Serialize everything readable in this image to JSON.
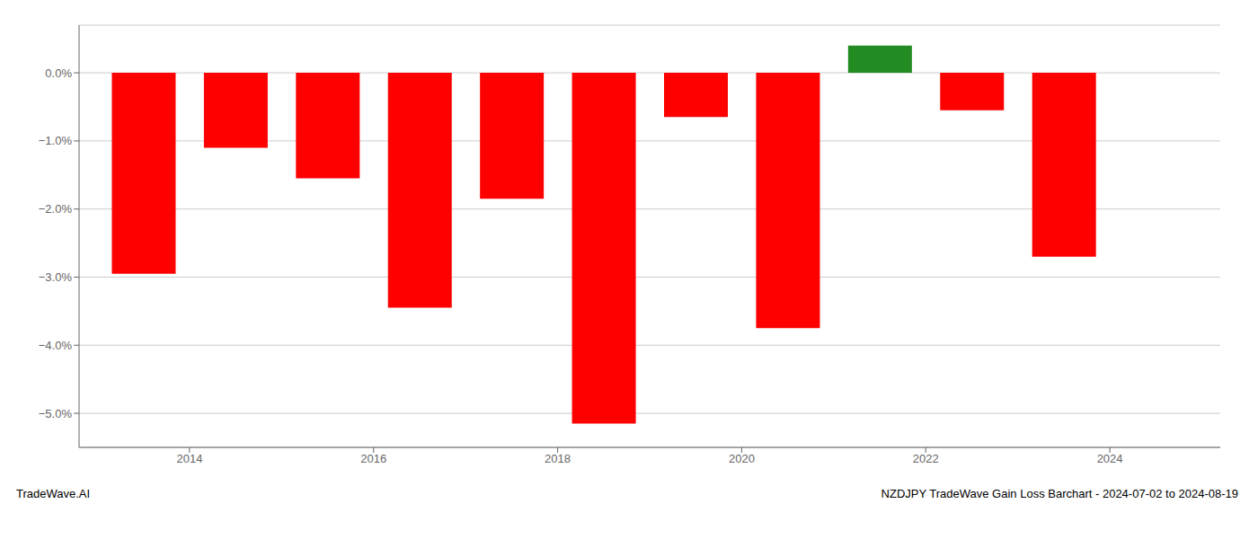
{
  "chart_data": {
    "type": "bar",
    "title": "NZDJPY TradeWave Gain Loss Barchart - 2024-07-02 to 2024-08-19",
    "annotations": [
      "TradeWave.AI"
    ],
    "x": [
      2013.5,
      2014.5,
      2015.5,
      2016.5,
      2017.5,
      2018.5,
      2019.5,
      2020.5,
      2021.5,
      2022.5,
      2023.5
    ],
    "values": [
      -2.95,
      -1.1,
      -1.55,
      -3.45,
      -1.85,
      -5.15,
      -0.65,
      -3.75,
      0.4,
      -0.55,
      -2.7
    ],
    "colors": [
      "#ff0000",
      "#ff0000",
      "#ff0000",
      "#ff0000",
      "#ff0000",
      "#ff0000",
      "#ff0000",
      "#ff0000",
      "#228B22",
      "#ff0000",
      "#ff0000"
    ],
    "xlim": [
      2012.8,
      2025.2
    ],
    "xticks": [
      2014,
      2016,
      2018,
      2020,
      2022,
      2024
    ],
    "ylim": [
      -5.5,
      0.7
    ],
    "yticks": [
      {
        "value": 0.0,
        "label": "0.0%"
      },
      {
        "value": -1.0,
        "label": "−1.0%"
      },
      {
        "value": -2.0,
        "label": "−2.0%"
      },
      {
        "value": -3.0,
        "label": "−3.0%"
      },
      {
        "value": -4.0,
        "label": "−4.0%"
      },
      {
        "value": -5.0,
        "label": "−5.0%"
      }
    ],
    "grid": true
  }
}
